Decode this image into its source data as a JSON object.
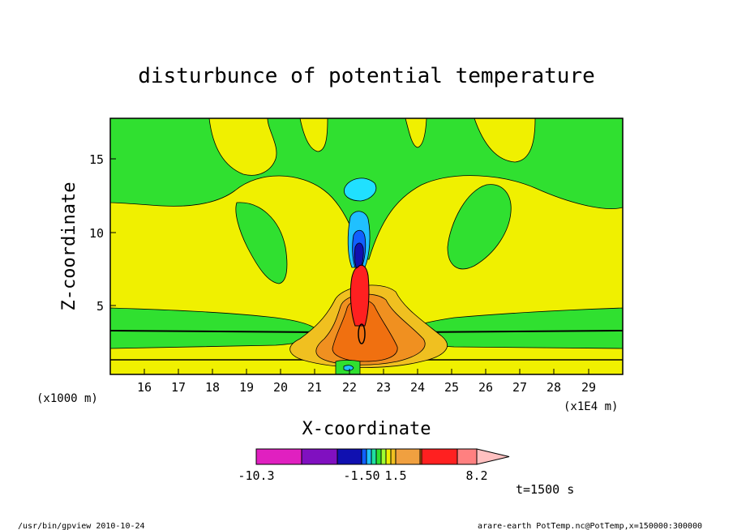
{
  "chart_data": {
    "type": "heatmap",
    "title": "disturbunce of potential temperature",
    "xlabel": "X-coordinate",
    "ylabel": "Z-coordinate",
    "x_unit": "(x1E4 m)",
    "y_unit": "(x1000 m)",
    "xlim": [
      15.0,
      30.0
    ],
    "ylim": [
      0.0,
      17.5
    ],
    "x_ticks": [
      "16",
      "17",
      "18",
      "19",
      "20",
      "21",
      "22",
      "23",
      "24",
      "25",
      "26",
      "27",
      "28",
      "29"
    ],
    "y_ticks": [
      "5",
      "10",
      "15"
    ],
    "colorbar": {
      "colors": [
        "#e020c0",
        "#8010c0",
        "#1010b0",
        "#1060ff",
        "#20c0ff",
        "#20e0a0",
        "#30e030",
        "#a0ff30",
        "#f0f000",
        "#f0c020",
        "#f0a040",
        "#f07010",
        "#ff2020",
        "#ff8080",
        "#ffc0c0"
      ],
      "tick_labels": [
        "-10.3",
        "-1.50",
        "1.5",
        "8.2"
      ]
    },
    "annotation": "t=1500 s"
  },
  "footer": {
    "left": "/usr/bin/gpview   2010-10-24",
    "right": "arare-earth_PotTemp.nc@PotTemp,x=150000:300000"
  }
}
